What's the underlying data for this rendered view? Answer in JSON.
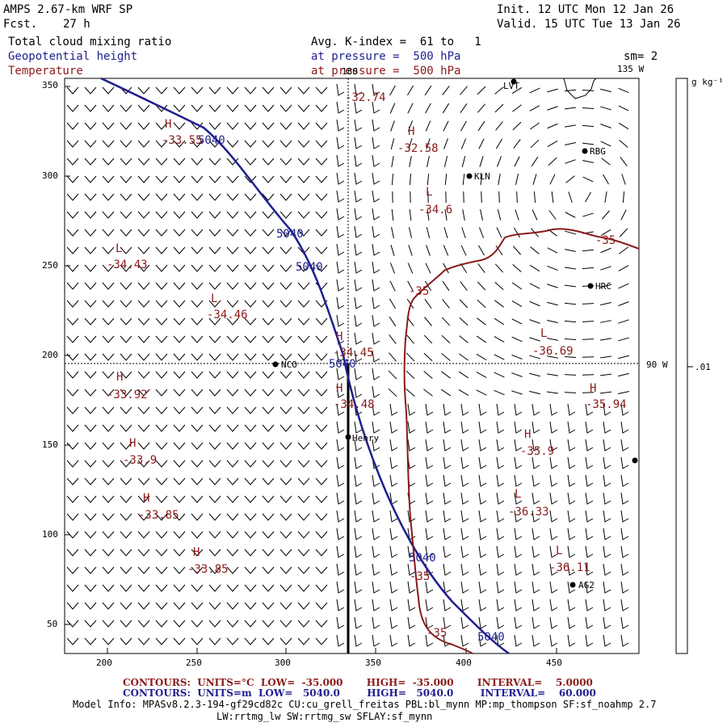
{
  "header": {
    "model": "AMPS 2.67-km WRF SP",
    "fcst_label": "Fcst.",
    "fcst_value": "27 h",
    "init": "Init. 12 UTC Mon 12 Jan 26",
    "valid": "Valid. 15 UTC Tue 13 Jan 26",
    "field1": "Total cloud mixing ratio",
    "field2": "Geopotential height",
    "field3": "Temperature",
    "avg": "Avg. K-index =  61 to   1",
    "pressure1": "at pressure =  500 hPa",
    "pressure2": "at pressure =  500 hPa",
    "sm": "sm= 2"
  },
  "colors": {
    "height": "#1f1f8f",
    "temp": "#8b1a1a"
  },
  "axes": {
    "x_ticks": [
      "200",
      "250",
      "300",
      "350",
      "400",
      "450"
    ],
    "y_ticks": [
      "350",
      "300",
      "250",
      "200",
      "150",
      "100",
      "50"
    ],
    "lon_180": "180",
    "lon_135w": "135 W",
    "lon_90w": "90 W"
  },
  "colorbar": {
    "unit": "g kg⁻¹",
    "value": ".01"
  },
  "stations": [
    {
      "name": "NCO"
    },
    {
      "name": "KLN"
    },
    {
      "name": "RBG"
    },
    {
      "name": "HRC"
    },
    {
      "name": "Henry"
    },
    {
      "name": "AG2"
    },
    {
      "name": "LVT"
    }
  ],
  "height_labels": [
    "5040",
    "5040",
    "5040",
    "5040",
    "5040",
    "5040"
  ],
  "temp_contour_labels": [
    "-35",
    "-35",
    "-35",
    "-35"
  ],
  "extrema": [
    {
      "type": "H",
      "value": "-33.55"
    },
    {
      "type": "",
      "value": "-32.74"
    },
    {
      "type": "H",
      "value": "-32.58"
    },
    {
      "type": "L",
      "value": "-34.6"
    },
    {
      "type": "L",
      "value": "-34.43"
    },
    {
      "type": "L",
      "value": "-34.46"
    },
    {
      "type": "H",
      "value": "-34.45"
    },
    {
      "type": "L",
      "value": "-36.69"
    },
    {
      "type": "H",
      "value": "-33.92"
    },
    {
      "type": "H",
      "value": "-34.48"
    },
    {
      "type": "H",
      "value": "-35.94"
    },
    {
      "type": "H",
      "value": "-33.9"
    },
    {
      "type": "H",
      "value": "-35.9"
    },
    {
      "type": "H",
      "value": "-33.85"
    },
    {
      "type": "L",
      "value": "-36.33"
    },
    {
      "type": "H",
      "value": "-33.85"
    },
    {
      "type": "L",
      "value": "-36.11"
    }
  ],
  "footer": {
    "contours1": "CONTOURS:  UNITS=°C  LOW=  -35.000       HIGH=  -35.000       INTERVAL=    5.0000",
    "contours2": "CONTOURS:  UNITS=m  LOW=   5040.0        HIGH=   5040.0        INTERVAL=    60.000",
    "model_info": "Model Info: MPASv8.2.3-194-gf29cd82c CU:cu_grell_freitas PBL:bl_mynn MP:mp_thompson SF:sf_noahmp 2.7",
    "model_info2": "LW:rrtmg_lw SW:rrtmg_sw SFLAY:sf_mynn"
  }
}
